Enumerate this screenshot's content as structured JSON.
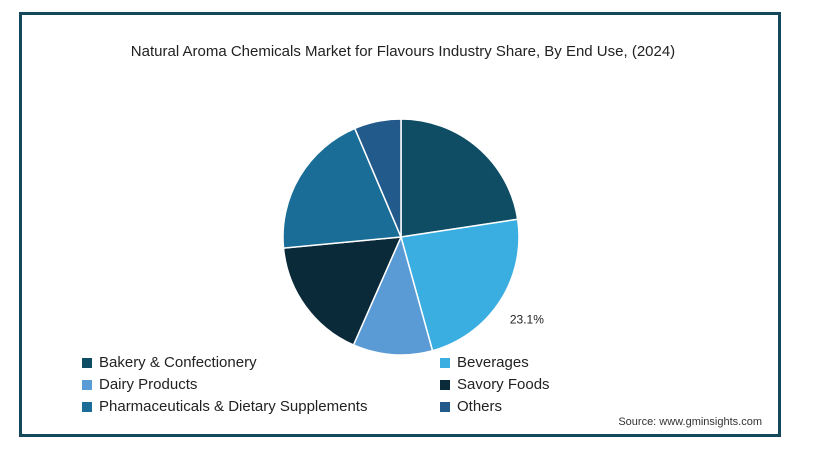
{
  "chart_data": {
    "type": "pie",
    "title": "Natural Aroma Chemicals Market for Flavours Industry Share, By End Use, (2024)",
    "slices": [
      {
        "name": "Bakery & Confectionery",
        "value": 22.6,
        "color": "#0e4d64"
      },
      {
        "name": "Beverages",
        "value": 23.1,
        "color": "#3aaee0",
        "label": "23.1%"
      },
      {
        "name": "Dairy Products",
        "value": 10.9,
        "color": "#5b9bd5"
      },
      {
        "name": "Savory Foods",
        "value": 16.9,
        "color": "#0a2a3a"
      },
      {
        "name": "Pharmaceuticals & Dietary Supplements",
        "value": 20.1,
        "color": "#1a6d96"
      },
      {
        "name": "Others",
        "value": 6.4,
        "color": "#235a8c"
      }
    ],
    "legend_position": "bottom"
  },
  "source": "Source: www.gminsights.com"
}
